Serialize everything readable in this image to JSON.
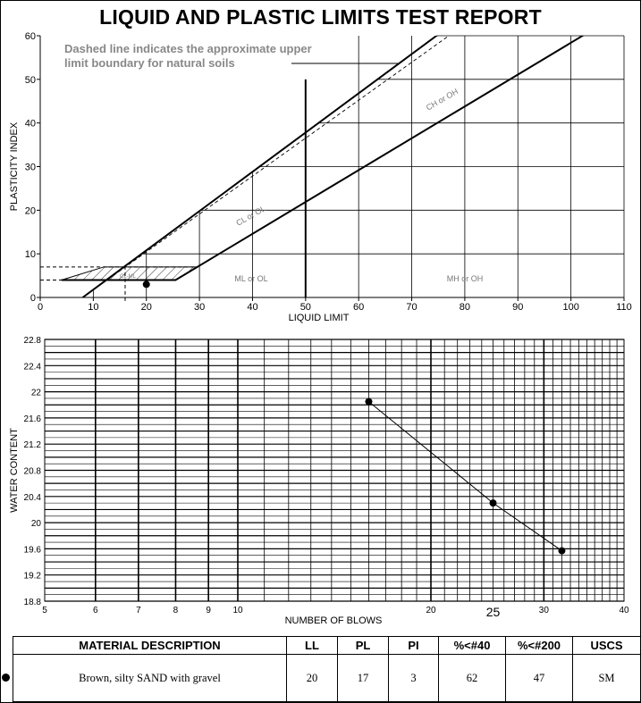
{
  "report_title": "LIQUID AND PLASTIC LIMITS TEST REPORT",
  "chart_data": [
    {
      "type": "scatter",
      "title": "",
      "xlabel": "LIQUID LIMIT",
      "ylabel": "PLASTICITY INDEX",
      "xlim": [
        0,
        110
      ],
      "ylim": [
        0,
        60
      ],
      "xticks": [
        "0",
        "10",
        "20",
        "30",
        "40",
        "50",
        "60",
        "70",
        "80",
        "90",
        "100",
        "110"
      ],
      "yticks": [
        "0",
        "10",
        "20",
        "30",
        "40",
        "50",
        "60"
      ],
      "grid": true,
      "annotation": "Dashed line indicates the approximate upper limit boundary for natural soils",
      "zone_labels": [
        "CH or OH",
        "CL or OL",
        "ML or OL",
        "MH or OH",
        "CL-ML"
      ],
      "a_line": [
        [
          4,
          4
        ],
        [
          25.5,
          4
        ],
        [
          110,
          65.7
        ]
      ],
      "u_line": [
        [
          8,
          0
        ],
        [
          16,
          7.2
        ],
        [
          76,
          61.2
        ]
      ],
      "points": [
        {
          "x": 20,
          "y": 3
        }
      ]
    },
    {
      "type": "line",
      "title": "",
      "xlabel": "NUMBER OF BLOWS",
      "ylabel": "WATER CONTENT",
      "x_scale": "log",
      "xlim": [
        5,
        40
      ],
      "ylim": [
        18.8,
        22.8
      ],
      "xticks": [
        "5",
        "6",
        "7",
        "8",
        "9",
        "10",
        "20",
        "25",
        "30",
        "40"
      ],
      "yticks": [
        "18.8",
        "19.2",
        "19.6",
        "20",
        "20.4",
        "20.8",
        "21.2",
        "21.6",
        "22",
        "22.4",
        "22.8"
      ],
      "grid": true,
      "series": [
        {
          "points": [
            {
              "x": 16,
              "y": 21.85
            },
            {
              "x": 25,
              "y": 20.3
            },
            {
              "x": 32,
              "y": 19.57
            }
          ]
        }
      ]
    }
  ],
  "summary": {
    "headers": [
      "MATERIAL DESCRIPTION",
      "LL",
      "PL",
      "PI",
      "%<#40",
      "%<#200",
      "USCS"
    ],
    "rows": [
      [
        "Brown, silty SAND with gravel",
        "20",
        "17",
        "3",
        "62",
        "47",
        "SM"
      ]
    ]
  }
}
